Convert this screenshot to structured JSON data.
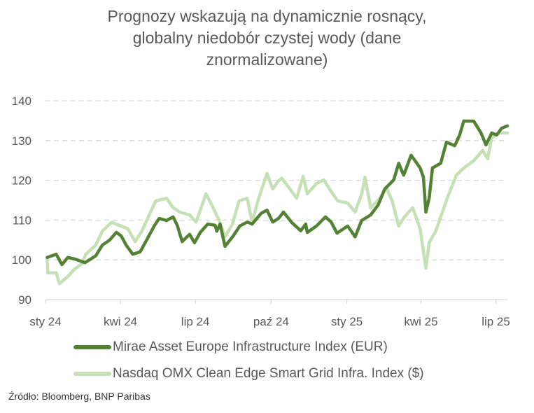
{
  "chart_data": {
    "type": "line",
    "title": [
      "Prognozy wskazują na dynamicznie rosnący,",
      "globalny niedobór czystej wody (dane",
      "znormalizowane)"
    ],
    "ylim": [
      90,
      140
    ],
    "yticks": [
      90,
      100,
      110,
      120,
      130,
      140
    ],
    "ytick_labels": [
      "90",
      "100",
      "110",
      "120",
      "130",
      "140"
    ],
    "xlim": [
      "2024-01-01",
      "2025-07-15"
    ],
    "xticks": [
      "2024-01-01",
      "2024-04-01",
      "2024-07-01",
      "2024-10-01",
      "2025-01-01",
      "2025-04-01",
      "2025-07-01"
    ],
    "xtick_labels": [
      "sty 24",
      "kwi 24",
      "lip 24",
      "paź 24",
      "sty 25",
      "kwi 25",
      "lip 25"
    ],
    "grid": "horizontal-dashed",
    "legend_position": "bottom",
    "series": [
      {
        "name": "Mirae Asset Europe Infrastructure Index (EUR)",
        "color": "#548235",
        "x": [
          "2024-01-03",
          "2024-01-14",
          "2024-01-21",
          "2024-01-28",
          "2024-02-06",
          "2024-02-18",
          "2024-03-02",
          "2024-03-10",
          "2024-03-19",
          "2024-03-27",
          "2024-04-02",
          "2024-04-08",
          "2024-04-16",
          "2024-04-25",
          "2024-05-01",
          "2024-05-12",
          "2024-05-18",
          "2024-05-27",
          "2024-06-04",
          "2024-06-09",
          "2024-06-15",
          "2024-06-24",
          "2024-06-30",
          "2024-07-07",
          "2024-07-16",
          "2024-07-25",
          "2024-07-27",
          "2024-07-31",
          "2024-08-06",
          "2024-08-16",
          "2024-08-24",
          "2024-09-02",
          "2024-09-08",
          "2024-09-19",
          "2024-09-26",
          "2024-10-03",
          "2024-10-10",
          "2024-10-16",
          "2024-10-26",
          "2024-11-06",
          "2024-11-12",
          "2024-11-14",
          "2024-11-25",
          "2024-12-06",
          "2024-12-13",
          "2024-12-20",
          "2025-01-02",
          "2025-01-11",
          "2025-01-19",
          "2025-01-30",
          "2025-02-08",
          "2025-02-16",
          "2025-02-27",
          "2025-03-05",
          "2025-03-11",
          "2025-03-20",
          "2025-03-25",
          "2025-03-31",
          "2025-04-04",
          "2025-04-07",
          "2025-04-11",
          "2025-04-15",
          "2025-04-25",
          "2025-05-02",
          "2025-05-12",
          "2025-05-18",
          "2025-05-23",
          "2025-06-04",
          "2025-06-13",
          "2025-06-19",
          "2025-06-26",
          "2025-07-02",
          "2025-07-08",
          "2025-07-15"
        ],
        "values": [
          100.6,
          101.4,
          98.8,
          100.6,
          100.2,
          99.3,
          101.0,
          103.7,
          105.0,
          106.9,
          106.0,
          103.7,
          101.4,
          102.0,
          104.3,
          108.5,
          110.4,
          109.9,
          110.8,
          108.7,
          104.6,
          106.4,
          104.3,
          106.9,
          109.0,
          108.7,
          107.2,
          109.0,
          103.4,
          106.0,
          108.5,
          109.5,
          109.0,
          111.7,
          112.5,
          109.5,
          110.4,
          112.0,
          109.4,
          107.3,
          109.0,
          106.9,
          108.5,
          110.8,
          109.5,
          106.7,
          108.5,
          105.8,
          109.9,
          111.3,
          113.8,
          117.8,
          120.1,
          124.3,
          121.3,
          126.3,
          124.9,
          123.1,
          120.8,
          112.0,
          115.5,
          123.1,
          124.3,
          129.6,
          128.7,
          131.4,
          134.9,
          134.9,
          131.9,
          128.9,
          131.9,
          131.4,
          133.1,
          133.7
        ]
      },
      {
        "name": "Nasdaq OMX Clean Edge Smart Grid Infra. Index ($)",
        "color": "#C5E0B4",
        "x": [
          "2024-01-03",
          "2024-01-04",
          "2024-01-14",
          "2024-01-18",
          "2024-01-28",
          "2024-02-05",
          "2024-02-14",
          "2024-02-19",
          "2024-03-02",
          "2024-03-10",
          "2024-03-21",
          "2024-04-02",
          "2024-04-10",
          "2024-04-19",
          "2024-04-27",
          "2024-05-06",
          "2024-05-14",
          "2024-05-27",
          "2024-06-04",
          "2024-06-12",
          "2024-06-24",
          "2024-07-02",
          "2024-07-07",
          "2024-07-14",
          "2024-07-21",
          "2024-07-30",
          "2024-08-06",
          "2024-08-15",
          "2024-08-23",
          "2024-09-02",
          "2024-09-08",
          "2024-09-16",
          "2024-09-26",
          "2024-10-03",
          "2024-10-10",
          "2024-10-14",
          "2024-10-24",
          "2024-11-01",
          "2024-11-09",
          "2024-11-14",
          "2024-11-25",
          "2024-12-04",
          "2024-12-11",
          "2024-12-21",
          "2025-01-02",
          "2025-01-11",
          "2025-01-19",
          "2025-01-23",
          "2025-01-30",
          "2025-02-10",
          "2025-02-18",
          "2025-02-25",
          "2025-03-05",
          "2025-03-12",
          "2025-03-22",
          "2025-03-31",
          "2025-04-07",
          "2025-04-11",
          "2025-04-19",
          "2025-04-27",
          "2025-05-04",
          "2025-05-14",
          "2025-05-23",
          "2025-06-04",
          "2025-06-15",
          "2025-06-21",
          "2025-06-26",
          "2025-07-04",
          "2025-07-15"
        ],
        "values": [
          99.9,
          96.7,
          96.7,
          94.0,
          95.8,
          97.6,
          99.0,
          101.4,
          103.7,
          107.2,
          109.4,
          108.5,
          107.8,
          104.6,
          107.2,
          111.3,
          114.8,
          115.5,
          113.1,
          112.0,
          111.3,
          109.5,
          112.5,
          116.6,
          113.8,
          109.9,
          105.8,
          109.0,
          114.8,
          115.5,
          109.5,
          115.5,
          121.7,
          117.8,
          119.9,
          120.5,
          117.8,
          115.5,
          121.0,
          116.6,
          119.2,
          120.1,
          117.8,
          114.8,
          114.3,
          112.0,
          116.6,
          120.8,
          113.1,
          115.5,
          118.2,
          114.8,
          108.5,
          110.8,
          113.1,
          107.8,
          97.9,
          104.3,
          107.2,
          112.0,
          116.1,
          121.3,
          123.1,
          124.9,
          127.5,
          125.4,
          130.7,
          131.9,
          131.9
        ]
      }
    ],
    "source": "Źródło: Bloomberg, BNP Paribas"
  }
}
